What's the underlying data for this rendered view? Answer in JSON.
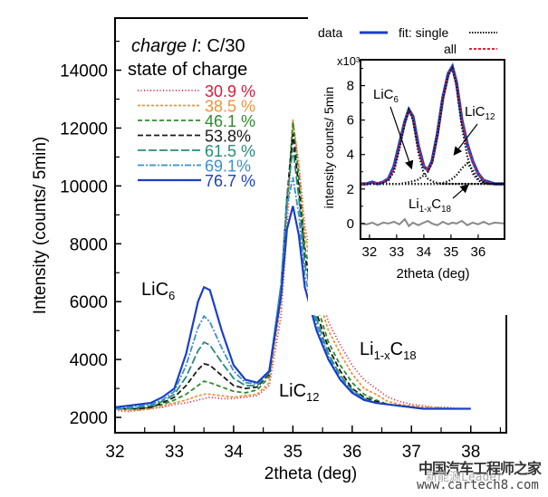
{
  "chart_data": [
    {
      "type": "line",
      "title": "",
      "annotation_title": "charge I: C/30",
      "annotation_title_italic_part": "charge I",
      "annotation_title_rest": ": C/30",
      "annotation_subtitle": "state of charge",
      "xlabel": "2theta (deg)",
      "ylabel": "Intensity (counts/ 5min)",
      "xlim": [
        32,
        38.6
      ],
      "ylim": [
        1470,
        15800
      ],
      "xticks": [
        32,
        33,
        34,
        35,
        36,
        37,
        38
      ],
      "yticks": [
        2000,
        4000,
        6000,
        8000,
        10000,
        12000,
        14000
      ],
      "grid": false,
      "legend_position": "top-left",
      "annotations": [
        {
          "text": "LiC",
          "sub": "6",
          "x": 33.0,
          "y": 6300
        },
        {
          "text": "LiC",
          "sub": "12",
          "x": 35.2,
          "y": 3350
        },
        {
          "text": "Li",
          "sub": "1-x",
          "text2": "C",
          "sub2": "18",
          "x": 36.3,
          "y": 4200
        }
      ],
      "x": [
        32.0,
        32.2,
        32.4,
        32.6,
        32.8,
        33.0,
        33.2,
        33.4,
        33.5,
        33.6,
        33.8,
        34.0,
        34.2,
        34.4,
        34.6,
        34.8,
        34.9,
        35.0,
        35.1,
        35.2,
        35.4,
        35.6,
        35.8,
        36.0,
        36.2,
        36.4,
        36.6,
        36.8,
        37.0,
        37.2,
        37.4,
        37.6,
        37.8,
        38.0
      ],
      "series": [
        {
          "name": "30.9 %",
          "color": "#d81b3c",
          "dash": "1,2.5",
          "values": [
            2250,
            2200,
            2250,
            2300,
            2350,
            2450,
            2500,
            2600,
            2650,
            2700,
            2650,
            2650,
            2700,
            2750,
            3100,
            5500,
            8500,
            12200,
            10800,
            8600,
            6600,
            5300,
            4500,
            3800,
            3300,
            3000,
            2700,
            2550,
            2450,
            2400,
            2350,
            2350,
            2300,
            2300
          ]
        },
        {
          "name": "38.5 %",
          "color": "#f0923a",
          "dash": "3,2",
          "values": [
            2300,
            2250,
            2250,
            2300,
            2400,
            2500,
            2600,
            2750,
            2800,
            2800,
            2750,
            2700,
            2750,
            2800,
            3200,
            6000,
            9000,
            12300,
            10600,
            8300,
            6300,
            5000,
            4200,
            3500,
            3000,
            2800,
            2550,
            2450,
            2400,
            2350,
            2350,
            2300,
            2300,
            2300
          ]
        },
        {
          "name": "46.1 %",
          "color": "#2e8b2e",
          "dash": "5,3",
          "values": [
            2300,
            2300,
            2300,
            2350,
            2450,
            2600,
            2800,
            3100,
            3250,
            3200,
            3050,
            2900,
            2850,
            2950,
            3400,
            6300,
            9400,
            12200,
            10300,
            7900,
            5900,
            4600,
            3800,
            3200,
            2800,
            2600,
            2450,
            2400,
            2350,
            2300,
            2300,
            2300,
            2300,
            2300
          ]
        },
        {
          "name": "53.8%",
          "color": "#1a1a1a",
          "dash": "6,3",
          "values": [
            2300,
            2300,
            2300,
            2350,
            2500,
            2700,
            3100,
            3650,
            3850,
            3800,
            3450,
            3100,
            3000,
            3050,
            3500,
            6500,
            9600,
            11800,
            9900,
            7600,
            5600,
            4400,
            3600,
            3000,
            2700,
            2550,
            2450,
            2400,
            2350,
            2300,
            2300,
            2300,
            2300,
            2300
          ]
        },
        {
          "name": "61.5 %",
          "color": "#2a8a7a",
          "dash": "9,3",
          "values": [
            2300,
            2300,
            2350,
            2400,
            2550,
            2800,
            3400,
            4300,
            4600,
            4500,
            3900,
            3350,
            3100,
            3100,
            3550,
            6600,
            9600,
            11300,
            9600,
            7300,
            5400,
            4200,
            3450,
            2950,
            2650,
            2500,
            2450,
            2400,
            2350,
            2300,
            2300,
            2300,
            2300,
            2300
          ]
        },
        {
          "name": "69.1%",
          "color": "#3a8fd0",
          "dash": "7,2,2,2",
          "values": [
            2300,
            2350,
            2400,
            2450,
            2600,
            2900,
            3800,
            5100,
            5500,
            5300,
            4400,
            3600,
            3200,
            3150,
            3600,
            6600,
            9300,
            10300,
            9000,
            6900,
            5200,
            4100,
            3350,
            2900,
            2650,
            2500,
            2450,
            2400,
            2350,
            2300,
            2300,
            2300,
            2300,
            2300
          ]
        },
        {
          "name": "76.7 %",
          "color": "#1c3fc4",
          "dash": "",
          "values": [
            2350,
            2400,
            2450,
            2500,
            2700,
            3000,
            4200,
            6000,
            6500,
            6400,
            5000,
            3800,
            3300,
            3200,
            3600,
            6200,
            8500,
            9300,
            8300,
            6500,
            5000,
            4000,
            3300,
            2850,
            2600,
            2500,
            2450,
            2400,
            2350,
            2300,
            2300,
            2300,
            2300,
            2300
          ]
        }
      ]
    },
    {
      "type": "line",
      "title": "",
      "xlabel": "2theta (deg)",
      "ylabel": "intensity counts/ 5min",
      "y_multiplier": "x10³",
      "xlim": [
        31.67,
        36.97
      ],
      "ylim": [
        -0.9,
        9.5
      ],
      "xticks": [
        32,
        33,
        34,
        35,
        36
      ],
      "yticks": [
        0,
        2,
        4,
        6,
        8
      ],
      "grid": false,
      "legend_position": "top",
      "legend": [
        {
          "name": "data",
          "color": "#1c3fc4",
          "style": "solid"
        },
        {
          "name": "fit: single",
          "color": "#111111",
          "style": "dotted"
        },
        {
          "name": "all",
          "color": "#e0223a",
          "style": "dashed"
        }
      ],
      "annotations": [
        {
          "text": "LiC",
          "sub": "6"
        },
        {
          "text": "LiC",
          "sub": "12"
        },
        {
          "text": "Li",
          "sub": "1-x",
          "text2": "C",
          "sub2": "18"
        }
      ],
      "x": [
        31.67,
        31.9,
        32.1,
        32.3,
        32.5,
        32.7,
        32.9,
        33.1,
        33.3,
        33.45,
        33.6,
        33.8,
        34.0,
        34.15,
        34.3,
        34.5,
        34.7,
        34.9,
        35.05,
        35.2,
        35.4,
        35.6,
        35.8,
        36.0,
        36.2,
        36.4,
        36.6,
        36.97
      ],
      "series": [
        {
          "name": "data",
          "values": [
            2.3,
            2.3,
            2.4,
            2.3,
            2.4,
            2.6,
            3.3,
            4.6,
            5.9,
            6.6,
            6.2,
            4.5,
            3.3,
            3.1,
            3.6,
            5.2,
            7.3,
            8.7,
            9.1,
            8.2,
            6.0,
            4.6,
            3.6,
            2.9,
            2.5,
            2.4,
            2.3,
            2.3
          ]
        },
        {
          "name": "fit all",
          "values": [
            2.3,
            2.3,
            2.35,
            2.35,
            2.4,
            2.6,
            3.2,
            4.5,
            5.9,
            6.6,
            6.1,
            4.4,
            3.3,
            3.05,
            3.55,
            5.2,
            7.3,
            8.7,
            9.05,
            8.2,
            6.0,
            4.55,
            3.55,
            2.9,
            2.5,
            2.35,
            2.3,
            2.3
          ]
        },
        {
          "name": "fit single: baseline",
          "values": [
            2.3,
            2.3,
            2.3,
            2.3,
            2.3,
            2.3,
            2.3,
            2.3,
            2.3,
            2.3,
            2.3,
            2.3,
            2.3,
            2.3,
            2.3,
            2.3,
            2.3,
            2.3,
            2.3,
            2.3,
            2.3,
            2.3,
            2.3,
            2.3,
            2.3,
            2.3,
            2.3,
            2.3
          ]
        },
        {
          "name": "fit single: LiC6",
          "values": [
            2.3,
            2.3,
            2.3,
            2.3,
            2.35,
            2.5,
            3.0,
            4.3,
            5.8,
            6.6,
            6.0,
            4.1,
            2.9,
            2.6,
            2.45,
            2.35,
            2.3,
            2.3,
            2.3,
            2.3,
            2.3,
            2.3,
            2.3,
            2.3,
            2.3,
            2.3,
            2.3,
            2.3
          ]
        },
        {
          "name": "fit single: LiC12",
          "values": [
            2.3,
            2.3,
            2.3,
            2.3,
            2.3,
            2.3,
            2.3,
            2.3,
            2.35,
            2.4,
            2.45,
            2.55,
            2.8,
            3.0,
            3.5,
            5.1,
            7.2,
            8.6,
            9.0,
            8.0,
            5.6,
            3.9,
            2.9,
            2.5,
            2.35,
            2.3,
            2.3,
            2.3
          ]
        },
        {
          "name": "fit single: Li1-xC18",
          "values": [
            2.3,
            2.3,
            2.3,
            2.3,
            2.3,
            2.3,
            2.3,
            2.3,
            2.3,
            2.3,
            2.3,
            2.3,
            2.3,
            2.3,
            2.3,
            2.3,
            2.35,
            2.45,
            2.6,
            2.8,
            3.2,
            3.5,
            3.1,
            2.6,
            2.4,
            2.3,
            2.3,
            2.3
          ]
        },
        {
          "name": "residual",
          "values": [
            0.0,
            -0.05,
            0.05,
            -0.1,
            0.05,
            0.0,
            0.1,
            -0.05,
            0.25,
            -0.15,
            0.05,
            -0.1,
            0.05,
            0.15,
            0.0,
            -0.1,
            0.1,
            -0.05,
            0.05,
            0.0,
            0.15,
            -0.1,
            0.05,
            -0.05,
            0.1,
            -0.05,
            0.05,
            0.0
          ]
        }
      ]
    }
  ],
  "watermark": {
    "line1": "中国汽车工程师之家",
    "line2": "新能源Leader",
    "line3": "www.cartech8.com"
  }
}
